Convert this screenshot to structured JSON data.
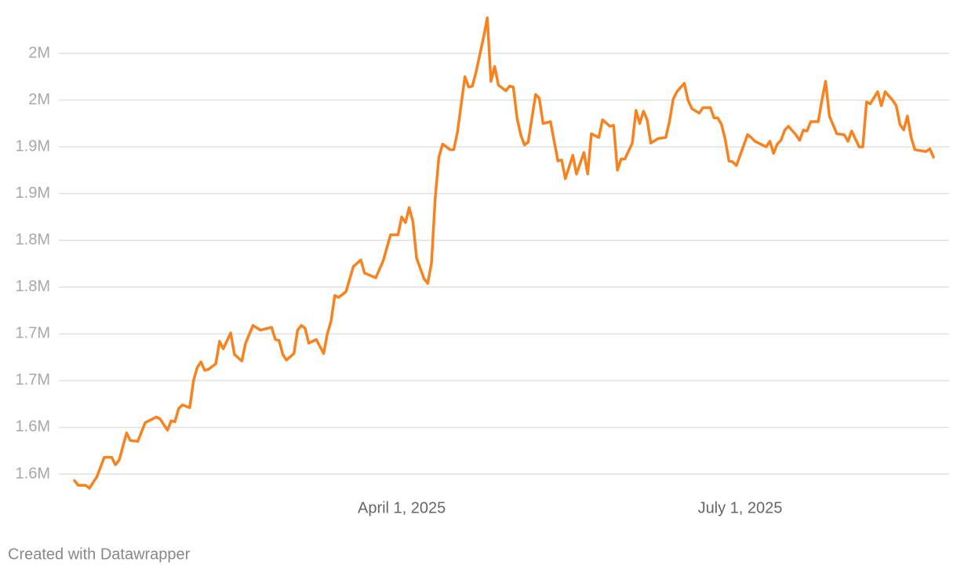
{
  "chart_data": {
    "type": "line",
    "x": [
      "2025-01-03",
      "2025-01-04",
      "2025-01-06",
      "2025-01-07",
      "2025-01-09",
      "2025-01-11",
      "2025-01-13",
      "2025-01-14",
      "2025-01-15",
      "2025-01-17",
      "2025-01-18",
      "2025-01-20",
      "2025-01-22",
      "2025-01-23",
      "2025-01-25",
      "2025-01-26",
      "2025-01-28",
      "2025-01-29",
      "2025-01-30",
      "2025-01-31",
      "2025-02-01",
      "2025-02-03",
      "2025-02-04",
      "2025-02-05",
      "2025-02-06",
      "2025-02-07",
      "2025-02-08",
      "2025-02-10",
      "2025-02-11",
      "2025-02-12",
      "2025-02-14",
      "2025-02-15",
      "2025-02-17",
      "2025-02-18",
      "2025-02-20",
      "2025-02-22",
      "2025-02-25",
      "2025-02-26",
      "2025-02-27",
      "2025-02-28",
      "2025-03-01",
      "2025-03-03",
      "2025-03-04",
      "2025-03-05",
      "2025-03-06",
      "2025-03-07",
      "2025-03-09",
      "2025-03-11",
      "2025-03-12",
      "2025-03-13",
      "2025-03-14",
      "2025-03-15",
      "2025-03-17",
      "2025-03-19",
      "2025-03-21",
      "2025-03-22",
      "2025-03-25",
      "2025-03-27",
      "2025-03-29",
      "2025-03-31",
      "2025-04-01",
      "2025-04-02",
      "2025-04-03",
      "2025-04-04",
      "2025-04-05",
      "2025-04-07",
      "2025-04-08",
      "2025-04-09",
      "2025-04-10",
      "2025-04-11",
      "2025-04-12",
      "2025-04-14",
      "2025-04-15",
      "2025-04-16",
      "2025-04-18",
      "2025-04-19",
      "2025-04-20",
      "2025-04-21",
      "2025-04-23",
      "2025-04-24",
      "2025-04-25",
      "2025-04-26",
      "2025-04-27",
      "2025-04-29",
      "2025-04-30",
      "2025-05-01",
      "2025-05-02",
      "2025-05-03",
      "2025-05-04",
      "2025-05-05",
      "2025-05-07",
      "2025-05-08",
      "2025-05-09",
      "2025-05-11",
      "2025-05-12",
      "2025-05-13",
      "2025-05-14",
      "2025-05-15",
      "2025-05-17",
      "2025-05-18",
      "2025-05-20",
      "2025-05-21",
      "2025-05-22",
      "2025-05-24",
      "2025-05-25",
      "2025-05-27",
      "2025-05-28",
      "2025-05-29",
      "2025-05-30",
      "2025-05-31",
      "2025-06-02",
      "2025-06-03",
      "2025-06-04",
      "2025-06-05",
      "2025-06-06",
      "2025-06-07",
      "2025-06-09",
      "2025-06-11",
      "2025-06-12",
      "2025-06-13",
      "2025-06-14",
      "2025-06-16",
      "2025-06-17",
      "2025-06-18",
      "2025-06-20",
      "2025-06-21",
      "2025-06-23",
      "2025-06-24",
      "2025-06-25",
      "2025-06-26",
      "2025-06-27",
      "2025-06-28",
      "2025-06-29",
      "2025-06-30",
      "2025-07-03",
      "2025-07-04",
      "2025-07-05",
      "2025-07-08",
      "2025-07-09",
      "2025-07-10",
      "2025-07-11",
      "2025-07-12",
      "2025-07-13",
      "2025-07-14",
      "2025-07-16",
      "2025-07-17",
      "2025-07-18",
      "2025-07-19",
      "2025-07-20",
      "2025-07-22",
      "2025-07-23",
      "2025-07-24",
      "2025-07-25",
      "2025-07-27",
      "2025-07-29",
      "2025-07-30",
      "2025-07-31",
      "2025-08-02",
      "2025-08-03",
      "2025-08-04",
      "2025-08-05",
      "2025-08-07",
      "2025-08-08",
      "2025-08-09",
      "2025-08-11",
      "2025-08-12",
      "2025-08-13",
      "2025-08-14",
      "2025-08-15",
      "2025-08-16",
      "2025-08-17",
      "2025-08-20",
      "2025-08-21",
      "2025-08-22"
    ],
    "series": [
      {
        "color": "#f8821e",
        "values": [
          1543000,
          1538000,
          1538000,
          1535000,
          1547000,
          1568000,
          1568000,
          1560000,
          1565000,
          1594000,
          1586000,
          1585000,
          1605000,
          1607000,
          1611000,
          1609000,
          1597000,
          1607000,
          1606000,
          1620000,
          1624000,
          1621000,
          1650000,
          1664000,
          1670000,
          1661000,
          1662000,
          1668000,
          1692000,
          1684000,
          1701000,
          1678000,
          1671000,
          1690000,
          1709000,
          1704000,
          1707000,
          1694000,
          1693000,
          1678000,
          1672000,
          1679000,
          1704000,
          1709000,
          1706000,
          1690000,
          1694000,
          1679000,
          1700000,
          1714000,
          1741000,
          1739000,
          1745000,
          1772000,
          1779000,
          1765000,
          1760000,
          1778000,
          1806000,
          1806000,
          1825000,
          1819000,
          1835000,
          1820000,
          1781000,
          1759000,
          1754000,
          1776000,
          1845000,
          1889000,
          1903000,
          1897000,
          1897000,
          1916000,
          1975000,
          1964000,
          1965000,
          1980000,
          2017000,
          2038000,
          1970000,
          1986000,
          1966000,
          1960000,
          1965000,
          1964000,
          1931000,
          1913000,
          1902000,
          1905000,
          1956000,
          1952000,
          1925000,
          1927000,
          1906000,
          1885000,
          1886000,
          1866000,
          1891000,
          1871000,
          1894000,
          1871000,
          1914000,
          1910000,
          1929000,
          1922000,
          1923000,
          1875000,
          1887000,
          1887000,
          1904000,
          1939000,
          1925000,
          1938000,
          1929000,
          1904000,
          1909000,
          1910000,
          1927000,
          1951000,
          1959000,
          1968000,
          1950000,
          1941000,
          1936000,
          1942000,
          1942000,
          1931000,
          1931000,
          1924000,
          1908000,
          1885000,
          1884000,
          1880000,
          1913000,
          1910000,
          1906000,
          1900000,
          1906000,
          1893000,
          1903000,
          1907000,
          1918000,
          1922000,
          1913000,
          1907000,
          1918000,
          1917000,
          1927000,
          1927000,
          1950000,
          1970000,
          1933000,
          1914000,
          1913000,
          1906000,
          1917000,
          1900000,
          1900000,
          1948000,
          1946000,
          1959000,
          1944000,
          1959000,
          1950000,
          1944000,
          1924000,
          1918000,
          1933000,
          1910000,
          1897000,
          1895000,
          1898000,
          1889000
        ]
      }
    ],
    "xlim": [
      "2025-01-03",
      "2025-08-22"
    ],
    "xticks": [
      {
        "value": "2025-04-01",
        "label": "April 1, 2025"
      },
      {
        "value": "2025-07-01",
        "label": "July 1, 2025"
      }
    ],
    "ylim": [
      1550000,
      2000000
    ],
    "yticks": [
      {
        "value": 1550000,
        "label": "1.6M"
      },
      {
        "value": 1600000,
        "label": "1.6M"
      },
      {
        "value": 1650000,
        "label": "1.7M"
      },
      {
        "value": 1700000,
        "label": "1.7M"
      },
      {
        "value": 1750000,
        "label": "1.8M"
      },
      {
        "value": 1800000,
        "label": "1.8M"
      },
      {
        "value": 1850000,
        "label": "1.9M"
      },
      {
        "value": 1900000,
        "label": "1.9M"
      },
      {
        "value": 1950000,
        "label": "2M"
      },
      {
        "value": 2000000,
        "label": "2M"
      }
    ],
    "grid": true,
    "footer": "Created with Datawrapper"
  }
}
